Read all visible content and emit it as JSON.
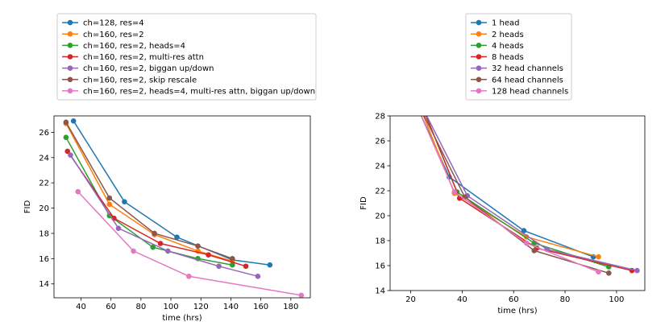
{
  "chart_data": [
    {
      "type": "line",
      "xlabel": "time (hrs)",
      "ylabel": "FID",
      "xlim": [
        22,
        193
      ],
      "ylim": [
        12.9,
        27.3
      ],
      "xticks": [
        40,
        60,
        80,
        100,
        120,
        140,
        160,
        180
      ],
      "yticks": [
        14,
        16,
        18,
        20,
        22,
        24,
        26
      ],
      "legend_location": "top-left, above plot",
      "series": [
        {
          "name": "ch=128, res=4",
          "color": "#1f77b4",
          "x": [
            35,
            69,
            104,
            141,
            166
          ],
          "y": [
            26.9,
            20.5,
            17.7,
            15.9,
            15.5
          ]
        },
        {
          "name": "ch=160, res=2",
          "color": "#ff7f0e",
          "x": [
            30,
            59,
            89,
            118,
            141
          ],
          "y": [
            26.7,
            20.3,
            17.9,
            16.6,
            15.8
          ]
        },
        {
          "name": "ch=160, res=2, heads=4",
          "color": "#2ca02c",
          "x": [
            30,
            59,
            88,
            118,
            141
          ],
          "y": [
            25.6,
            19.4,
            16.9,
            16.0,
            15.5
          ]
        },
        {
          "name": "ch=160, res=2, multi-res attn",
          "color": "#d62728",
          "x": [
            31,
            62,
            93,
            125,
            150
          ],
          "y": [
            24.5,
            19.2,
            17.2,
            16.3,
            15.4
          ]
        },
        {
          "name": "ch=160, res=2, biggan up/down",
          "color": "#9467bd",
          "x": [
            33,
            65,
            98,
            132,
            158
          ],
          "y": [
            24.2,
            18.4,
            16.6,
            15.4,
            14.6
          ]
        },
        {
          "name": "ch=160, res=2, skip rescale",
          "color": "#8c564b",
          "x": [
            30,
            59,
            89,
            118,
            141
          ],
          "y": [
            26.8,
            20.8,
            18.0,
            17.0,
            16.0
          ]
        },
        {
          "name": "ch=160, res=2, heads=4, multi-res attn, biggan up/down",
          "color": "#e377c2",
          "x": [
            38,
            75,
            112,
            187
          ],
          "y": [
            21.3,
            16.6,
            14.6,
            13.1
          ]
        }
      ]
    },
    {
      "type": "line",
      "xlabel": "time (hrs)",
      "ylabel": "FID",
      "xlim": [
        12,
        111
      ],
      "ylim": [
        14,
        28
      ],
      "xticks": [
        20,
        40,
        60,
        80,
        100
      ],
      "yticks": [
        14,
        16,
        18,
        20,
        22,
        24,
        26,
        28
      ],
      "legend_location": "top-center, above plot",
      "series": [
        {
          "name": "1 head",
          "color": "#1f77b4",
          "x": [
            23,
            35,
            64,
            91
          ],
          "y": [
            28.5,
            23.1,
            18.8,
            16.7
          ]
        },
        {
          "name": "2 heads",
          "color": "#ff7f0e",
          "x": [
            24,
            37,
            65,
            93
          ],
          "y": [
            28.5,
            21.8,
            18.3,
            16.7
          ]
        },
        {
          "name": "4 heads",
          "color": "#2ca02c",
          "x": [
            25,
            38,
            68,
            97
          ],
          "y": [
            28.5,
            21.9,
            17.8,
            15.9
          ]
        },
        {
          "name": "8 heads",
          "color": "#d62728",
          "x": [
            25,
            39,
            69,
            106
          ],
          "y": [
            28.5,
            21.4,
            17.4,
            15.6
          ]
        },
        {
          "name": "32 head channels",
          "color": "#9467bd",
          "x": [
            25,
            42,
            73,
            108
          ],
          "y": [
            28.5,
            21.6,
            17.3,
            15.6
          ]
        },
        {
          "name": "64 head channels",
          "color": "#8c564b",
          "x": [
            24,
            41,
            68,
            97
          ],
          "y": [
            28.5,
            21.5,
            17.2,
            15.4
          ]
        },
        {
          "name": "128 head channels",
          "color": "#e377c2",
          "x": [
            23,
            37,
            65,
            93
          ],
          "y": [
            28.5,
            21.9,
            17.8,
            15.5
          ]
        }
      ]
    }
  ]
}
